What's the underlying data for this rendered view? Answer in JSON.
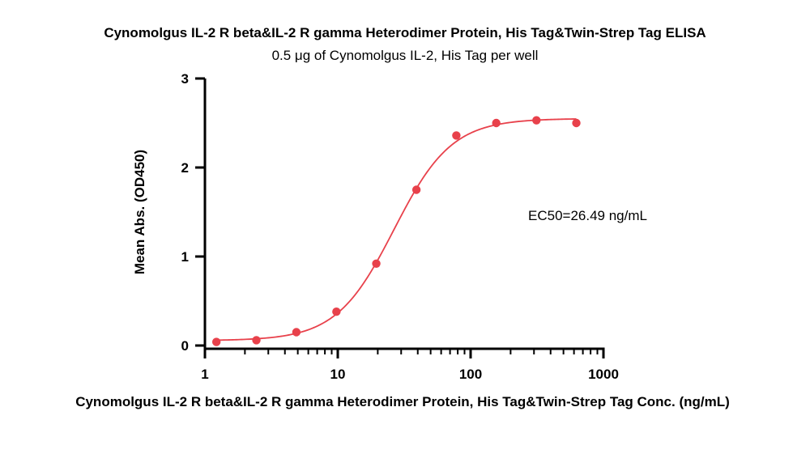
{
  "chart_data": {
    "type": "scatter",
    "title": "Cynomolgus IL-2 R beta&IL-2 R gamma Heterodimer Protein, His Tag&Twin-Strep Tag ELISA",
    "subtitle": "0.5 μg of Cynomolgus IL-2, His Tag per well",
    "xlabel": "Cynomolgus IL-2 R beta&IL-2 R gamma Heterodimer Protein, His Tag&Twin-Strep Tag Conc. (ng/mL)",
    "ylabel": "Mean Abs. (OD450)",
    "x_scale": "log",
    "xlim": [
      1,
      1000
    ],
    "ylim": [
      0,
      3
    ],
    "x_ticks": [
      1,
      10,
      100,
      1000
    ],
    "x_tick_labels": [
      "1",
      "10",
      "100",
      "1000"
    ],
    "y_ticks": [
      0,
      1,
      2,
      3
    ],
    "y_tick_labels": [
      "0",
      "1",
      "2",
      "3"
    ],
    "grid": false,
    "series": [
      {
        "color": "#e8414b",
        "points": [
          {
            "x": 1.22,
            "y": 0.04
          },
          {
            "x": 2.44,
            "y": 0.06
          },
          {
            "x": 4.88,
            "y": 0.15
          },
          {
            "x": 9.77,
            "y": 0.38
          },
          {
            "x": 19.5,
            "y": 0.92
          },
          {
            "x": 39.1,
            "y": 1.75
          },
          {
            "x": 78.1,
            "y": 2.36
          },
          {
            "x": 156,
            "y": 2.5
          },
          {
            "x": 313,
            "y": 2.53
          },
          {
            "x": 625,
            "y": 2.5
          }
        ],
        "fit": {
          "model": "4PL",
          "bottom": 0.055,
          "top": 2.55,
          "ec50": 26.49,
          "hill": 2.0
        }
      }
    ],
    "annotations": [
      {
        "text": "EC50=26.49 ng/mL"
      }
    ]
  }
}
